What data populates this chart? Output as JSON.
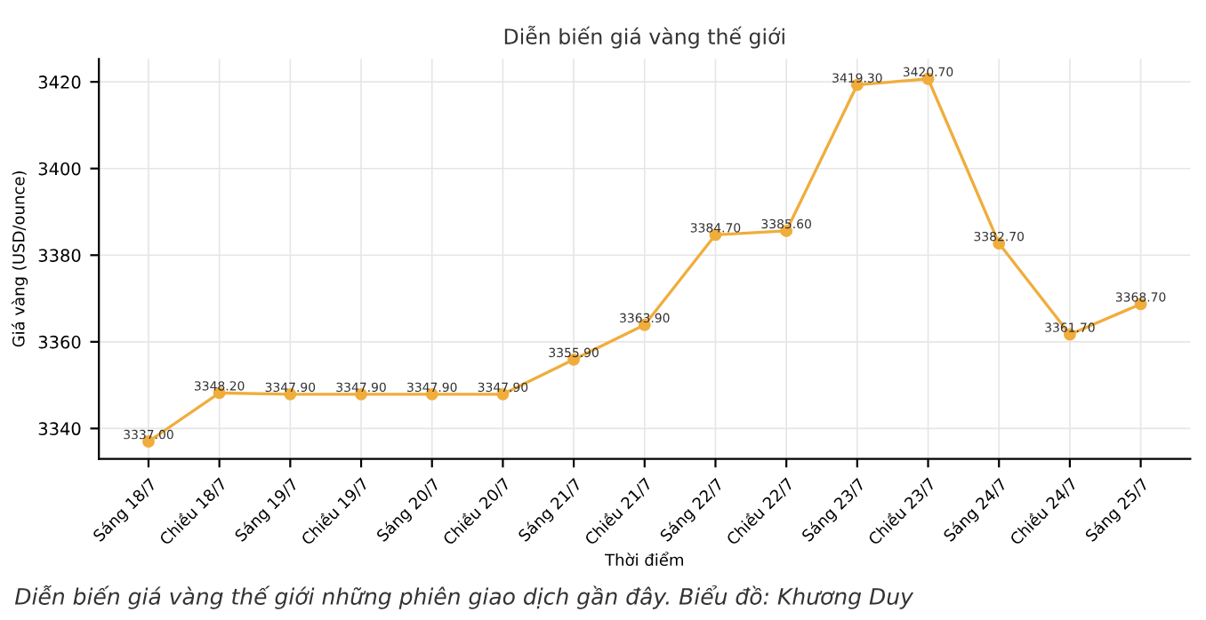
{
  "chart_data": {
    "type": "line",
    "title": "Diễn biến giá vàng thế giới",
    "xlabel": "Thời điểm",
    "ylabel": "Giá vàng (USD/ounce)",
    "categories": [
      "Sáng 18/7",
      "Chiều 18/7",
      "Sáng 19/7",
      "Chiều 19/7",
      "Sáng 20/7",
      "Chiều 20/7",
      "Sáng 21/7",
      "Chiều 21/7",
      "Sáng 22/7",
      "Chiều 22/7",
      "Sáng 23/7",
      "Chiều 23/7",
      "Sáng 24/7",
      "Chiều 24/7",
      "Sáng 25/7"
    ],
    "series": [
      {
        "color": "#f0ad3c",
        "values": [
          3337.0,
          3348.2,
          3347.9,
          3347.9,
          3347.9,
          3347.9,
          3355.9,
          3363.9,
          3384.7,
          3385.6,
          3419.3,
          3420.7,
          3382.7,
          3361.7,
          3368.7
        ],
        "value_labels": [
          "3337.00",
          "3348.20",
          "3347.90",
          "3347.90",
          "3347.90",
          "3347.90",
          "3355.90",
          "3363.90",
          "3384.70",
          "3385.60",
          "3419.30",
          "3420.70",
          "3382.70",
          "3361.70",
          "3368.70"
        ]
      }
    ],
    "ylim": [
      3333,
      3425.3
    ],
    "yticks": [
      3340,
      3360,
      3380,
      3400,
      3420
    ],
    "grid": true,
    "marker": "circle",
    "line_style": "solid",
    "annotations": [
      "Diễn biến giá vàng thế giới những phiên giao dịch gần đây. Biểu đồ: Khương Duy"
    ]
  }
}
